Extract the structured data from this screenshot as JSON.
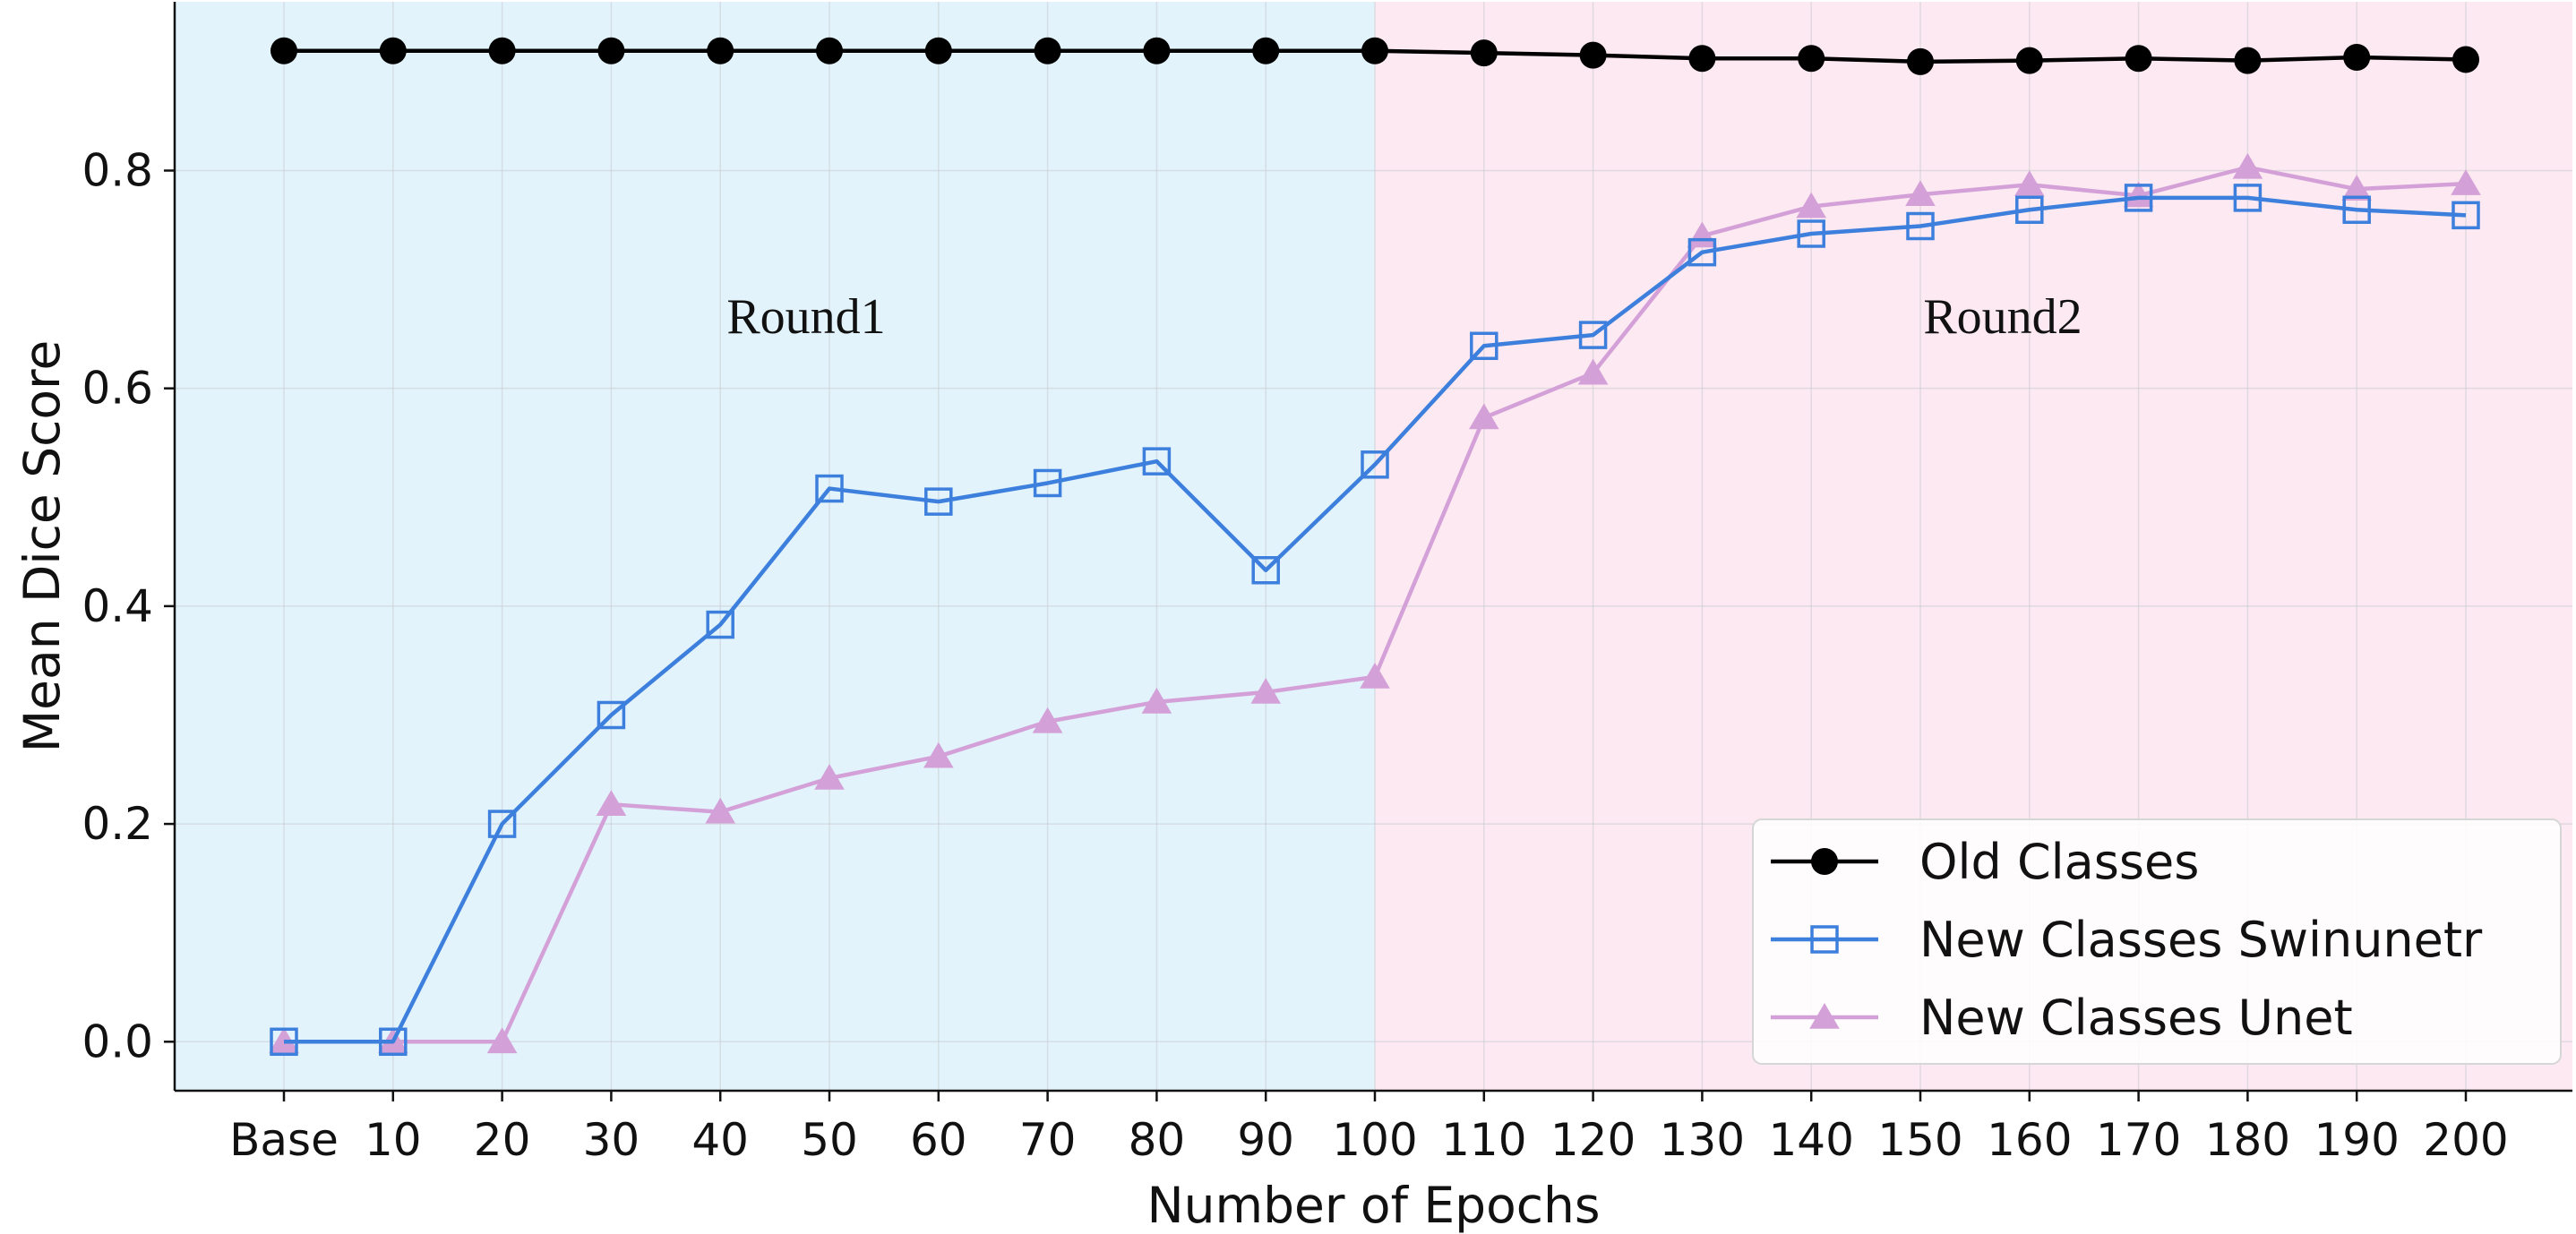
{
  "chart_data": {
    "type": "line",
    "xlabel": "Number of Epochs",
    "ylabel": "Mean Dice Score",
    "categories": [
      "Base",
      "10",
      "20",
      "30",
      "40",
      "50",
      "60",
      "70",
      "80",
      "90",
      "100",
      "110",
      "120",
      "130",
      "140",
      "150",
      "160",
      "170",
      "180",
      "190",
      "200"
    ],
    "ylim": [
      -0.045,
      0.955
    ],
    "yticks": [
      "0.0",
      "0.2",
      "0.4",
      "0.6",
      "0.8"
    ],
    "grid": true,
    "legend_position": "bottom-right",
    "regions": [
      {
        "label": "Round1",
        "from_index": -1,
        "to_index": 10,
        "color": "#e2f3fc"
      },
      {
        "label": "Round2",
        "from_index": 10,
        "to_index": 21,
        "color": "#fde9f1"
      }
    ],
    "series": [
      {
        "name": "Old Classes",
        "color": "#000000",
        "marker": "circle",
        "values": [
          0.91,
          0.91,
          0.91,
          0.91,
          0.91,
          0.91,
          0.91,
          0.91,
          0.91,
          0.91,
          0.91,
          0.908,
          0.906,
          0.903,
          0.903,
          0.9,
          0.901,
          0.903,
          0.901,
          0.904,
          0.902
        ]
      },
      {
        "name": "New Classes Swinunetr",
        "color": "#3d7fdc",
        "marker": "square",
        "values": [
          0.0,
          0.0,
          0.2,
          0.3,
          0.383,
          0.508,
          0.496,
          0.513,
          0.533,
          0.433,
          0.53,
          0.639,
          0.649,
          0.725,
          0.742,
          0.749,
          0.764,
          0.775,
          0.775,
          0.764,
          0.759
        ]
      },
      {
        "name": "New Classes Unet",
        "color": "#d4a0d8",
        "marker": "triangle",
        "values": [
          0.0,
          0.0,
          0.0,
          0.218,
          0.211,
          0.242,
          0.262,
          0.294,
          0.312,
          0.321,
          0.335,
          0.573,
          0.614,
          0.74,
          0.767,
          0.778,
          0.787,
          0.777,
          0.803,
          0.783,
          0.788
        ]
      }
    ]
  }
}
